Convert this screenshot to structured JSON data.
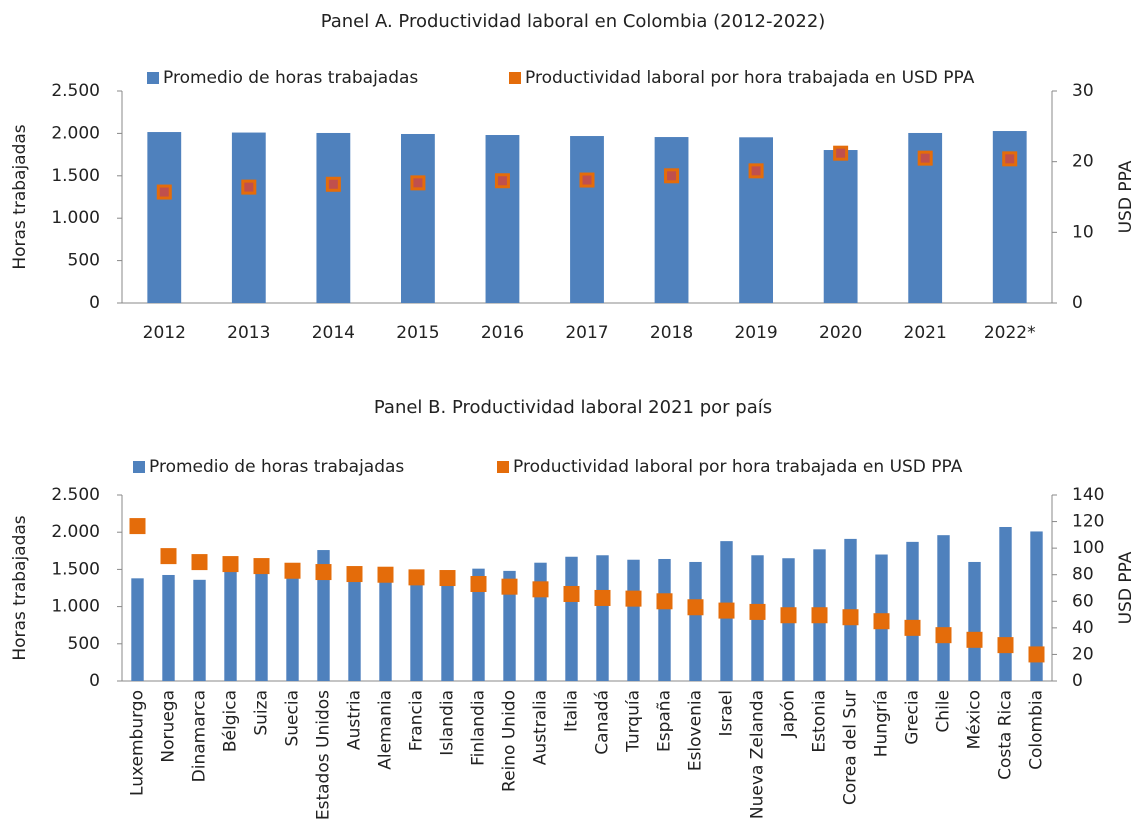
{
  "chart_data": [
    {
      "type": "combo",
      "title": "Panel A. Productividad laboral en Colombia (2012-2022)",
      "y_label": "Horas trabajadas",
      "y2_label": "USD PPA",
      "categories": [
        "2012",
        "2013",
        "2014",
        "2015",
        "2016",
        "2017",
        "2018",
        "2019",
        "2020",
        "2021",
        "2022*"
      ],
      "series": [
        {
          "name": "Promedio de horas trabajadas",
          "type": "bar",
          "color": "#4f81bd",
          "values": [
            2016,
            2010,
            2005,
            1993,
            1981,
            1969,
            1957,
            1954,
            1804,
            2005,
            2028
          ]
        },
        {
          "name": "Productividad laboral por hora trabajada en USD PPA",
          "type": "scatter",
          "axis": "y2",
          "color": "#e46c0a",
          "values": [
            15.7,
            16.4,
            16.8,
            17.0,
            17.3,
            17.4,
            18.0,
            18.7,
            21.2,
            20.5,
            20.4
          ]
        }
      ],
      "ylim": [
        0,
        2500
      ],
      "yticks": [
        0,
        500,
        {
          "value": 1000,
          "label": "1.000"
        },
        {
          "value": 1500,
          "label": "1.500"
        },
        {
          "value": 2000,
          "label": "2.000"
        },
        {
          "value": 2500,
          "label": "2.500"
        }
      ],
      "y2lim": [
        0,
        30
      ],
      "y2ticks": [
        0,
        10,
        20,
        30
      ],
      "grid": false
    },
    {
      "type": "combo",
      "title": "Panel B. Productividad laboral 2021 por país",
      "y_label": "Horas trabajadas",
      "y2_label": "USD PPA",
      "categories": [
        "Luxemburgo",
        "Noruega",
        "Dinamarca",
        "Bélgica",
        "Suiza",
        "Suecia",
        "Estados Unidos",
        "Austria",
        "Alemania",
        "Francia",
        "Islandia",
        "Finlandia",
        "Reino Unido",
        "Australia",
        "Italia",
        "Canadá",
        "Turquía",
        "España",
        "Eslovenia",
        "Israel",
        "Nueva Zelanda",
        "Japón",
        "Estonia",
        "Corea del Sur",
        "Hungría",
        "Grecia",
        "Chile",
        "México",
        "Costa Rica",
        "Colombia"
      ],
      "series": [
        {
          "name": "Promedio de horas trabajadas",
          "type": "bar",
          "color": "#4f81bd",
          "values": [
            1380,
            1425,
            1360,
            1480,
            1530,
            1440,
            1760,
            1440,
            1340,
            1490,
            1450,
            1510,
            1480,
            1590,
            1670,
            1690,
            1630,
            1640,
            1600,
            1880,
            1690,
            1650,
            1770,
            1910,
            1700,
            1870,
            1960,
            1600,
            2070,
            2010
          ]
        },
        {
          "name": "Productividad laboral por hora trabajada en USD PPA",
          "type": "scatter",
          "axis": "y2",
          "color": "#e46c0a",
          "values": [
            116.6,
            94,
            89.5,
            88,
            86.5,
            83,
            82,
            80.5,
            80,
            78,
            77.5,
            73,
            71,
            69,
            65.5,
            62.5,
            62,
            60,
            55.5,
            53,
            52,
            49.5,
            49.5,
            48,
            45,
            40,
            34.5,
            31,
            27,
            20
          ]
        }
      ],
      "ylim": [
        0,
        2500
      ],
      "yticks": [
        0,
        500,
        {
          "value": 1000,
          "label": "1.000"
        },
        {
          "value": 1500,
          "label": "1.500"
        },
        {
          "value": 2000,
          "label": "2.000"
        },
        {
          "value": 2500,
          "label": "2.500"
        }
      ],
      "y2lim": [
        0,
        140
      ],
      "y2ticks": [
        0,
        20,
        40,
        60,
        80,
        100,
        120,
        140
      ],
      "grid": false
    }
  ]
}
